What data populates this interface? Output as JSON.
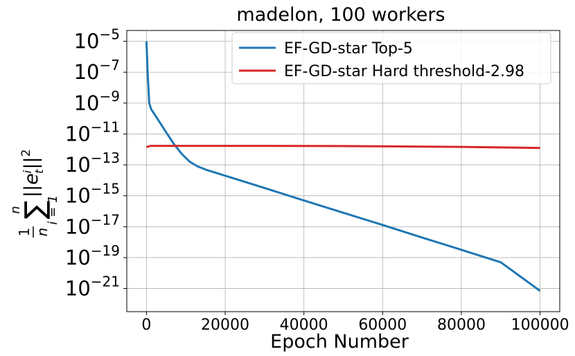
{
  "chart_data": {
    "type": "line",
    "title": "madelon, 100 workers",
    "xlabel": "Epoch Number",
    "ylabel": "1/n ∑_{i=1}^{n} ||e_t^i||^2",
    "ylabel_parts": {
      "frac_num": "1",
      "frac_den": "n",
      "sum": "∑",
      "sum_upper": "n",
      "sum_lower": "i = 1",
      "body": "||e",
      "sup": "i",
      "sub": "t",
      "tail": "||",
      "power": "2"
    },
    "x_scale": "linear",
    "y_scale": "log",
    "xlim": [
      -5000,
      105000
    ],
    "ylim_exponent": [
      -22.5,
      -4.3
    ],
    "x_ticks": [
      0,
      20000,
      40000,
      60000,
      80000,
      100000
    ],
    "x_tick_labels": [
      "0",
      "20000",
      "40000",
      "60000",
      "80000",
      "100000"
    ],
    "y_tick_exponents": [
      -5,
      -7,
      -9,
      -11,
      -13,
      -15,
      -17,
      -19,
      -21
    ],
    "y_tick_base": "10",
    "y_tick_exp_labels": [
      "−5",
      "−7",
      "−9",
      "−11",
      "−13",
      "−15",
      "−17",
      "−19",
      "−21"
    ],
    "grid": true,
    "legend_position": "top-right",
    "series": [
      {
        "name": "EF-GD-star Top-5",
        "color": "#1f77b4",
        "points": [
          [
            0,
            1e-05
          ],
          [
            300,
            1e-07
          ],
          [
            700,
            1e-09
          ],
          [
            1200,
            4e-10
          ],
          [
            3000,
            8e-11
          ],
          [
            5000,
            1.3e-11
          ],
          [
            7000,
            2.2e-12
          ],
          [
            9000,
            5e-13
          ],
          [
            11000,
            1.6e-13
          ],
          [
            13000,
            8e-14
          ],
          [
            15000,
            5e-14
          ],
          [
            20000,
            2e-14
          ],
          [
            30000,
            3.2e-15
          ],
          [
            40000,
            5e-16
          ],
          [
            50000,
            8e-17
          ],
          [
            60000,
            1.3e-17
          ],
          [
            70000,
            2e-18
          ],
          [
            80000,
            3.2e-19
          ],
          [
            90000,
            5e-20
          ],
          [
            100000,
            7e-22
          ]
        ]
      },
      {
        "name": "EF-GD-star Hard threshold-2.98",
        "color": "#d62728",
        "points": [
          [
            0,
            1.4e-12
          ],
          [
            1000,
            1.7e-12
          ],
          [
            10000,
            1.7e-12
          ],
          [
            30000,
            1.7e-12
          ],
          [
            50000,
            1.65e-12
          ],
          [
            60000,
            1.6e-12
          ],
          [
            80000,
            1.45e-12
          ],
          [
            100000,
            1.25e-12
          ]
        ]
      }
    ]
  }
}
